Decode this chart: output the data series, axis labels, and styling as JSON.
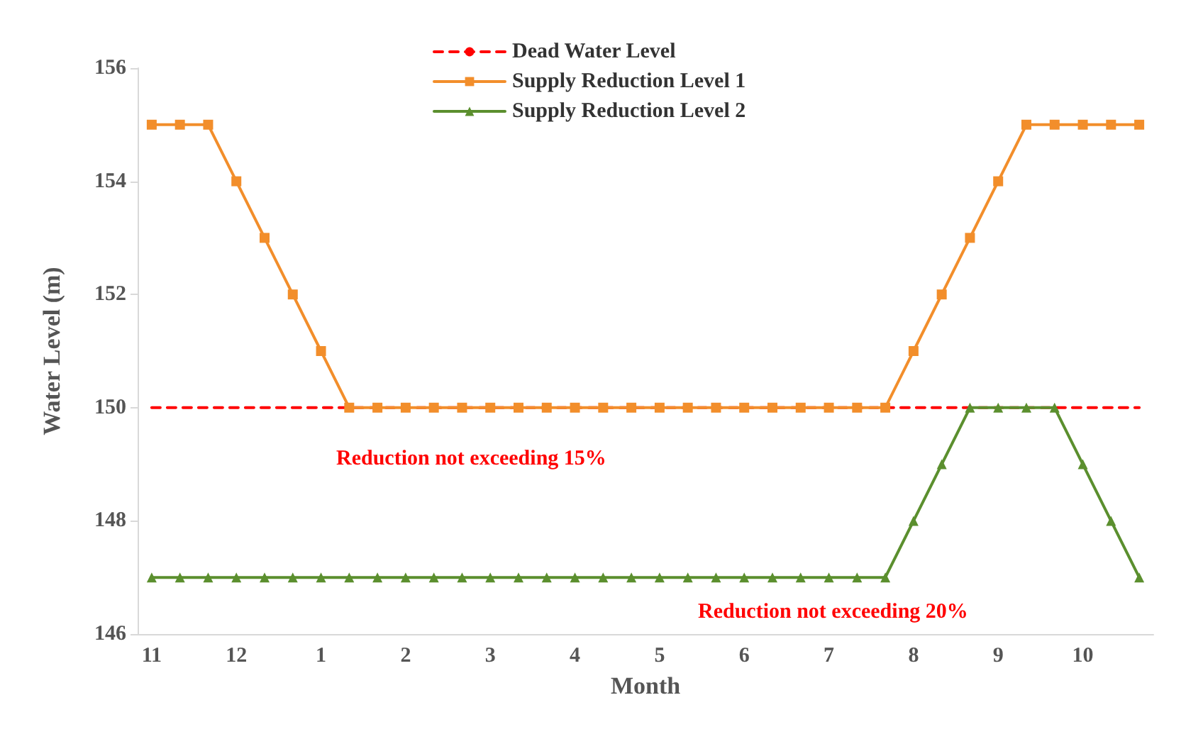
{
  "chart_data": {
    "type": "line",
    "xlabel": "Month",
    "ylabel": "Water Level (m)",
    "categories": [
      "11",
      null,
      null,
      "12",
      null,
      null,
      "1",
      null,
      null,
      "2",
      null,
      null,
      "3",
      null,
      null,
      "4",
      null,
      null,
      "5",
      null,
      null,
      "6",
      null,
      null,
      "7",
      null,
      null,
      "8",
      null,
      null,
      "9",
      null,
      null,
      "10",
      null,
      null
    ],
    "series": [
      {
        "name": "Dead Water Level",
        "color": "#ff0000",
        "line_style": "dashed",
        "marker": "none",
        "values": [
          150,
          150,
          150,
          150,
          150,
          150,
          150,
          150,
          150,
          150,
          150,
          150,
          150,
          150,
          150,
          150,
          150,
          150,
          150,
          150,
          150,
          150,
          150,
          150,
          150,
          150,
          150,
          150,
          150,
          150,
          150,
          150,
          150,
          150,
          150,
          150
        ]
      },
      {
        "name": "Supply Reduction Level 1",
        "color": "#f28e2b",
        "marker": "square",
        "values": [
          155,
          155,
          155,
          154,
          153,
          152,
          151,
          150,
          150,
          150,
          150,
          150,
          150,
          150,
          150,
          150,
          150,
          150,
          150,
          150,
          150,
          150,
          150,
          150,
          150,
          150,
          150,
          151,
          152,
          153,
          154,
          155,
          155,
          155,
          155,
          155
        ]
      },
      {
        "name": "Supply Reduction Level 2",
        "color": "#5b8f2e",
        "marker": "triangle",
        "values": [
          147,
          147,
          147,
          147,
          147,
          147,
          147,
          147,
          147,
          147,
          147,
          147,
          147,
          147,
          147,
          147,
          147,
          147,
          147,
          147,
          147,
          147,
          147,
          147,
          147,
          147,
          147,
          148,
          149,
          150,
          150,
          150,
          150,
          149,
          148,
          147
        ]
      }
    ],
    "annotations": [
      "Reduction not exceeding 15%",
      "Reduction not exceeding 20%"
    ],
    "ylim": [
      146,
      156
    ],
    "yticks": [
      146,
      148,
      150,
      152,
      154,
      156
    ],
    "grid": false,
    "legend": "top",
    "line_style": "solid"
  }
}
